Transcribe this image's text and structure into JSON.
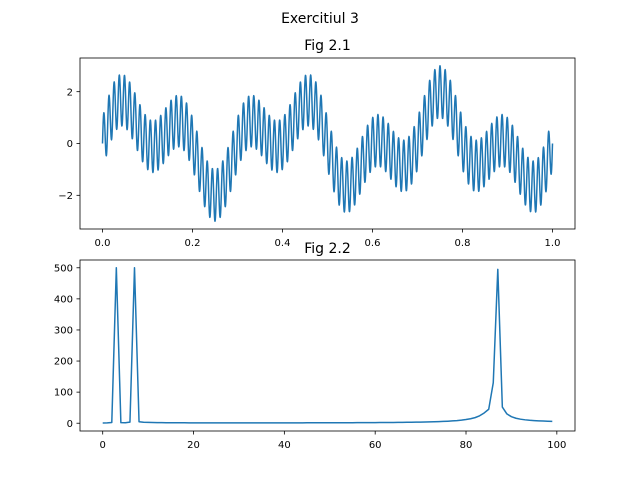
{
  "figure": {
    "suptitle": "Exercitiul 3",
    "line_color": "#1f77b4"
  },
  "chart_data": [
    {
      "type": "line",
      "title": "Fig 2.1",
      "xlabel": "",
      "ylabel": "",
      "xlim": [
        -0.05,
        1.05
      ],
      "ylim": [
        -3.3,
        3.3
      ],
      "xticks": [
        0.0,
        0.2,
        0.4,
        0.6,
        0.8,
        1.0
      ],
      "xtick_labels": [
        "0.0",
        "0.2",
        "0.4",
        "0.6",
        "0.8",
        "1.0"
      ],
      "yticks": [
        -2,
        0,
        2
      ],
      "ytick_labels": [
        "−2",
        "0",
        "2"
      ],
      "grid": false,
      "series": [
        {
          "components": [
            {
              "amplitude": 1,
              "frequency_hz": 3
            },
            {
              "amplitude": 1,
              "frequency_hz": 7
            },
            {
              "amplitude": 1,
              "frequency_hz": 87
            }
          ],
          "x_range": [
            0,
            1
          ],
          "samples": 100
        }
      ]
    },
    {
      "type": "line",
      "title": "Fig 2.2",
      "xlabel": "",
      "ylabel": "",
      "xlim": [
        -5,
        104
      ],
      "ylim": [
        -25,
        525
      ],
      "xticks": [
        0,
        20,
        40,
        60,
        80,
        100
      ],
      "xtick_labels": [
        "0",
        "20",
        "40",
        "60",
        "80",
        "100"
      ],
      "yticks": [
        0,
        100,
        200,
        300,
        400,
        500
      ],
      "ytick_labels": [
        "0",
        "100",
        "200",
        "300",
        "400",
        "500"
      ],
      "grid": false,
      "series": [
        {
          "x": [
            0,
            1,
            2,
            3,
            4,
            5,
            6,
            7,
            8,
            9,
            10,
            11,
            12,
            13,
            14,
            15,
            16,
            17,
            18,
            19,
            20,
            21,
            22,
            23,
            24,
            25,
            26,
            27,
            28,
            29,
            30,
            31,
            32,
            33,
            34,
            35,
            36,
            37,
            38,
            39,
            40,
            41,
            42,
            43,
            44,
            45,
            46,
            47,
            48,
            49,
            50,
            51,
            52,
            53,
            54,
            55,
            56,
            57,
            58,
            59,
            60,
            61,
            62,
            63,
            64,
            65,
            66,
            67,
            68,
            69,
            70,
            71,
            72,
            73,
            74,
            75,
            76,
            77,
            78,
            79,
            80,
            81,
            82,
            83,
            84,
            85,
            86,
            87,
            88,
            89,
            90,
            91,
            92,
            93,
            94,
            95,
            96,
            97,
            98,
            99
          ],
          "y": [
            0.8,
            1.1,
            2.5,
            500,
            1.8,
            1.6,
            3.5,
            500,
            4.8,
            3.2,
            2.6,
            2.2,
            2.0,
            1.8,
            1.7,
            1.6,
            1.5,
            1.4,
            1.4,
            1.3,
            1.3,
            1.3,
            1.3,
            1.2,
            1.2,
            1.2,
            1.2,
            1.2,
            1.2,
            1.2,
            1.2,
            1.2,
            1.2,
            1.2,
            1.2,
            1.2,
            1.2,
            1.2,
            1.2,
            1.3,
            1.3,
            1.3,
            1.3,
            1.3,
            1.3,
            1.4,
            1.4,
            1.4,
            1.4,
            1.5,
            1.5,
            1.5,
            1.6,
            1.6,
            1.7,
            1.7,
            1.8,
            1.8,
            1.9,
            2.0,
            2.1,
            2.2,
            2.3,
            2.4,
            2.5,
            2.7,
            2.8,
            3.0,
            3.2,
            3.4,
            3.7,
            4.0,
            4.3,
            4.7,
            5.2,
            5.8,
            6.5,
            7.4,
            8.5,
            10,
            12,
            14.5,
            18,
            24,
            33,
            45,
            130,
            495,
            52,
            30,
            21,
            16,
            13,
            11,
            9.5,
            8.5,
            7.6,
            7.0,
            6.4,
            6.0
          ]
        }
      ]
    }
  ]
}
